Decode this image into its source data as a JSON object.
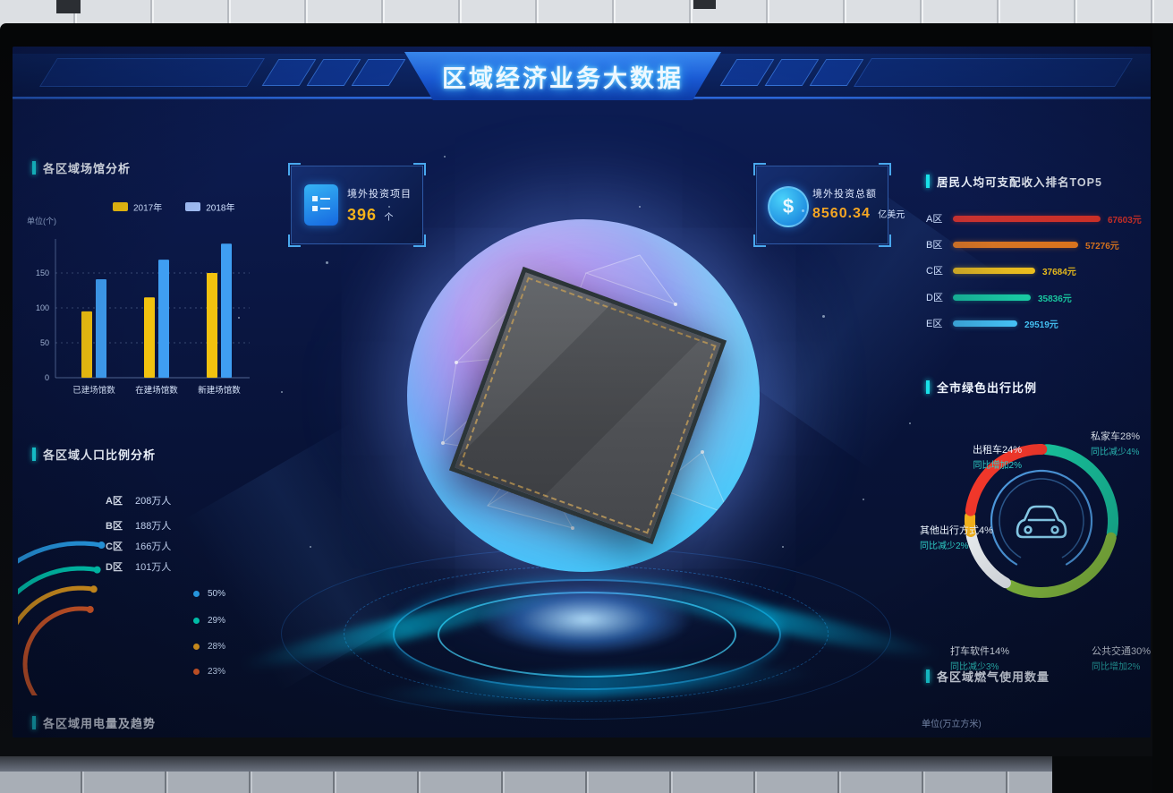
{
  "header": {
    "title": "区域经济业务大数据"
  },
  "venue": {
    "title": "各区域场馆分析",
    "unit": "单位(个)",
    "legend": [
      {
        "label": "2017年",
        "color": "#f2c20f"
      },
      {
        "label": "2018年",
        "color": "#9db9f0"
      }
    ],
    "y_ticks": [
      0,
      50,
      100,
      150
    ],
    "categories": [
      "已建场馆数",
      "在建场馆数",
      "新建场馆数"
    ],
    "series": [
      {
        "name": "2017年",
        "color": "#f2c20f",
        "values": [
          95,
          115,
          150
        ]
      },
      {
        "name": "2018年",
        "color": "#3f9ef2",
        "values": [
          141,
          169,
          192
        ]
      }
    ]
  },
  "invest_project": {
    "label": "境外投资项目",
    "value": "396",
    "unit": "个",
    "icon": "folder-icon"
  },
  "invest_total": {
    "label": "境外投资总额",
    "value": "8560.34",
    "unit": "亿美元",
    "icon": "dollar-icon"
  },
  "income": {
    "title": "居民人均可支配收入排名TOP5",
    "rows": [
      {
        "label": "A区",
        "value": 67603,
        "value_text": "67603元",
        "color": "#f0372a"
      },
      {
        "label": "B区",
        "value": 57276,
        "value_text": "57276元",
        "color": "#f5821e"
      },
      {
        "label": "C区",
        "value": 37684,
        "value_text": "37684元",
        "color": "#f5c51d"
      },
      {
        "label": "D区",
        "value": 35836,
        "value_text": "35836元",
        "color": "#19cfa5"
      },
      {
        "label": "E区",
        "value": 29519,
        "value_text": "29519元",
        "color": "#45c2f5"
      }
    ]
  },
  "population": {
    "title": "各区域人口比例分析",
    "rows": [
      {
        "label": "A区",
        "value_text": "208万人",
        "color": "#2aa7f5"
      },
      {
        "label": "B区",
        "value_text": "188万人",
        "color": "#00dcc0"
      },
      {
        "label": "C区",
        "value_text": "166万人",
        "color": "#f2a61d"
      },
      {
        "label": "D区",
        "value_text": "101万人",
        "color": "#f06328"
      }
    ],
    "legend": [
      {
        "label": "50%",
        "color": "#2aa7f5"
      },
      {
        "label": "29%",
        "color": "#00dcc0"
      },
      {
        "label": "28%",
        "color": "#f2a61d"
      },
      {
        "label": "23%",
        "color": "#f06328"
      }
    ]
  },
  "travel": {
    "title": "全市绿色出行比例",
    "segments": [
      {
        "name": "私家车",
        "pct": 28,
        "line1": "私家车28%",
        "line2": "同比减少4%",
        "color": "#19c8a0"
      },
      {
        "name": "公共交通",
        "pct": 30,
        "line1": "公共交通30%",
        "line2": "同比增加2%",
        "color": "#8cc63f"
      },
      {
        "name": "打车软件",
        "pct": 14,
        "line1": "打车软件14%",
        "line2": "同比减少3%",
        "color": "#eef2f5"
      },
      {
        "name": "其他出行方式",
        "pct": 4,
        "line1": "其他出行方式4%",
        "line2": "同比减少2%",
        "color": "#f5b31b"
      },
      {
        "name": "出租车",
        "pct": 24,
        "line1": "出租车24%",
        "line2": "同比增加2%",
        "color": "#f0372a"
      }
    ]
  },
  "electricity": {
    "title": "各区域用电量及趋势"
  },
  "gas": {
    "title": "各区域燃气使用数量",
    "unit": "单位(万立方米)"
  }
}
